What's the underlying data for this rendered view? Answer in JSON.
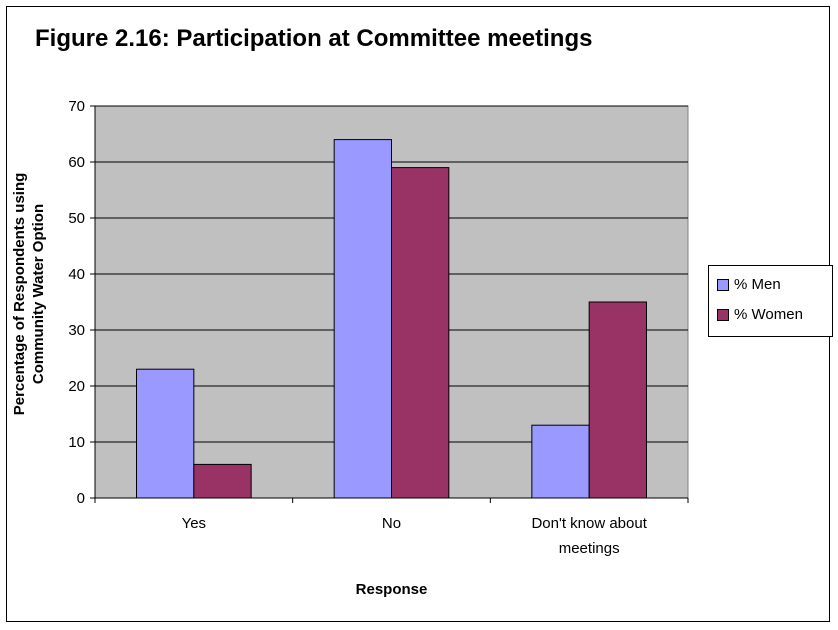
{
  "chart_data": {
    "type": "bar",
    "title": "Figure 2.16: Participation at Committee meetings",
    "xlabel": "Response",
    "ylabel_lines": [
      "Percentage of Respondents using",
      "Community Water Option"
    ],
    "categories": [
      [
        "Yes"
      ],
      [
        "No"
      ],
      [
        "Don't know about",
        "meetings"
      ]
    ],
    "series": [
      {
        "name": "% Men",
        "color": "#9999ff",
        "values": [
          23,
          64,
          13
        ]
      },
      {
        "name": "% Women",
        "color": "#993366",
        "values": [
          6,
          59,
          35
        ]
      }
    ],
    "ylim": [
      0,
      70
    ],
    "yticks": [
      0,
      10,
      20,
      30,
      40,
      50,
      60,
      70
    ],
    "grid": true,
    "plot_background": "#c0c0c0",
    "legend_position": "right"
  }
}
